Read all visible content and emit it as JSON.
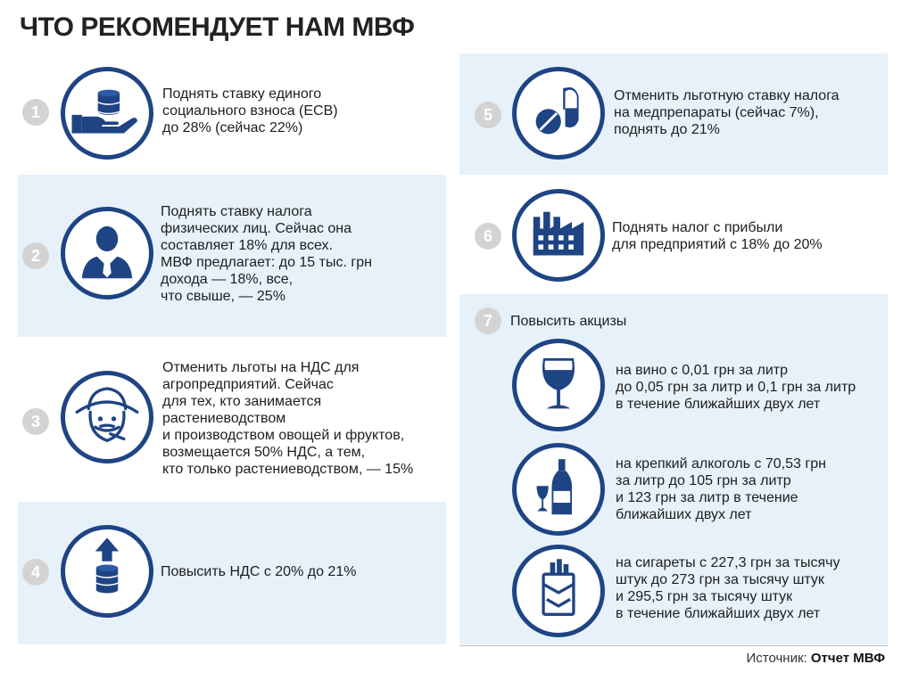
{
  "title": "ЧТО РЕКОМЕНДУЕТ НАМ МВФ",
  "items": [
    {
      "num": "1",
      "icon": "hand-coins-icon",
      "text": "Поднять ставку единого\nсоциального взноса (ЕСВ)\nдо 28% (сейчас 22%)"
    },
    {
      "num": "2",
      "icon": "businessman-icon",
      "text": "Поднять ставку налога\nфизических лиц. Сейчас она\nсоставляет 18% для всех.\nМВФ предлагает: до 15 тыс. грн\nдохода — 18%, все,\nчто свыше, — 25%"
    },
    {
      "num": "3",
      "icon": "farmer-icon",
      "text": "Отменить льготы на НДС для\nагропредприятий. Сейчас\nдля тех, кто занимается\nрастениеводством\nи производством овощей и фруктов,\nвозмещается 50% НДС, а тем,\nкто только растениеводством, — 15%"
    },
    {
      "num": "4",
      "icon": "coins-arrow-up-icon",
      "text": "Повысить НДС с 20% до 21%"
    },
    {
      "num": "5",
      "icon": "pills-icon",
      "text": "Отменить льготную ставку налога\nна медпрепараты (сейчас 7%),\nподнять до 21%"
    },
    {
      "num": "6",
      "icon": "factory-icon",
      "text": "Поднять налог с прибыли\nдля предприятий с 18% до 20%"
    },
    {
      "num": "7",
      "text": "Повысить акцизы"
    }
  ],
  "excise": [
    {
      "icon": "wine-glass-icon",
      "text": "на вино с 0,01 грн за литр\nдо 0,05 грн за литр и 0,1 грн за литр\nв течение ближайших двух лет"
    },
    {
      "icon": "liquor-bottle-icon",
      "text": "на крепкий алкоголь с 70,53 грн\nза литр до 105 грн за литр\nи 123 грн за литр в течение\nближайших двух лет"
    },
    {
      "icon": "cigarette-pack-icon",
      "text": "на сигареты с 227,3 грн за тысячу\nштук до 273 грн за тысячу штук\nи 295,5 грн за тысячу штук\nв течение ближайших двух лет"
    }
  ],
  "source": {
    "label": "Источник:",
    "value": "Отчет МВФ"
  },
  "colors": {
    "navy": "#1e4484",
    "panel": "#e6f1fa",
    "badge": "#d3d3d3"
  }
}
